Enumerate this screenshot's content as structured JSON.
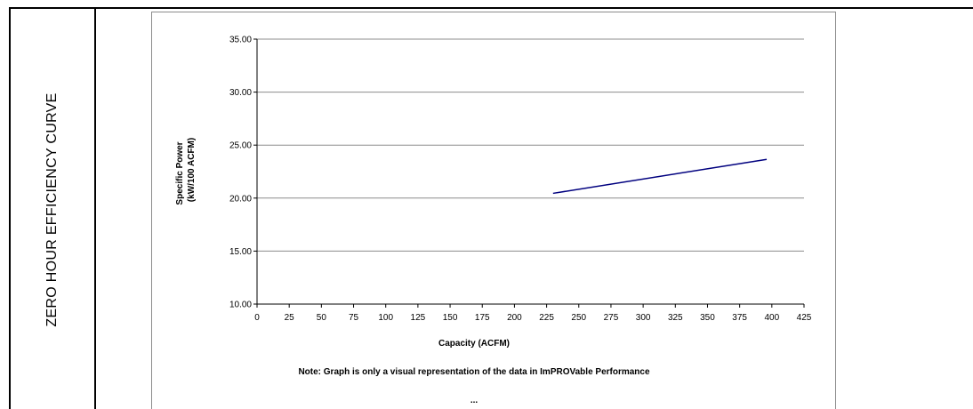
{
  "side_title": "ZERO HOUR EFFICIENCY CURVE",
  "chart_data": {
    "type": "line",
    "xlabel": "Capacity (ACFM)",
    "ylabel_lines": [
      "Specific Power",
      "(kW/100 ACFM)"
    ],
    "xlim": [
      0,
      425
    ],
    "ylim": [
      10,
      35
    ],
    "x_ticks": [
      "0",
      "25",
      "50",
      "75",
      "100",
      "125",
      "150",
      "175",
      "200",
      "225",
      "250",
      "275",
      "300",
      "325",
      "350",
      "375",
      "400",
      "425"
    ],
    "y_ticks": [
      "10.00",
      "15.00",
      "20.00",
      "25.00",
      "30.00",
      "35.00"
    ],
    "grid": "horizontal",
    "series": [
      {
        "color": "#00007f",
        "x": [
          230,
          396
        ],
        "y": [
          20.45,
          23.65
        ]
      }
    ]
  },
  "note": "Note:  Graph is only a visual representation of the data in ImPROVable Performance",
  "ellipsis": "..."
}
